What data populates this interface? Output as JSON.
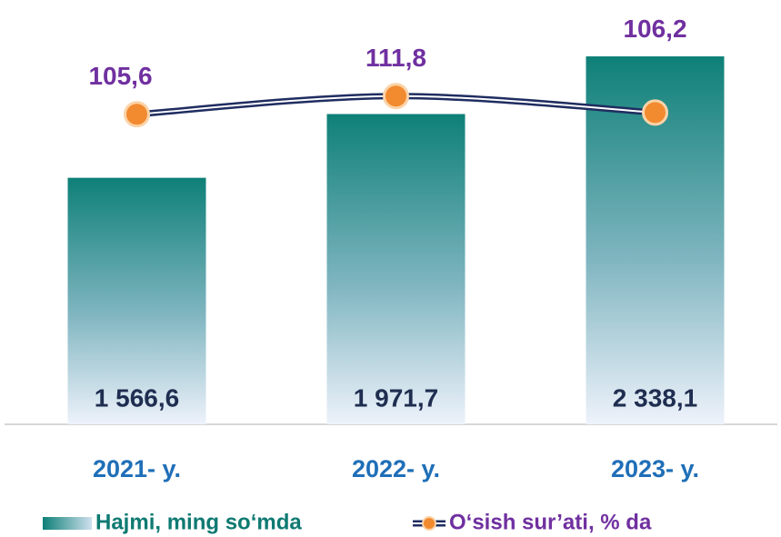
{
  "chart_data": {
    "type": "bar",
    "categories": [
      "2021- y.",
      "2022- y.",
      "2023- y."
    ],
    "series": [
      {
        "name": "Hajmi, ming so‘mda",
        "type": "bar",
        "color": "#0e8077",
        "values": [
          1566.6,
          1971.7,
          2338.1
        ],
        "value_labels": [
          "1 566,6",
          "1 971,7",
          "2 338,1"
        ]
      },
      {
        "name": "O‘sish sur’ati, % da",
        "type": "line",
        "axis": "y2",
        "color": "#f28a30",
        "values": [
          105.6,
          111.8,
          106.2
        ],
        "value_labels": [
          "105,6",
          "111,8",
          "106,2"
        ]
      }
    ],
    "ylim": [
      0,
      2500
    ],
    "y2lim": [
      0,
      134
    ],
    "legend": "bottom"
  }
}
